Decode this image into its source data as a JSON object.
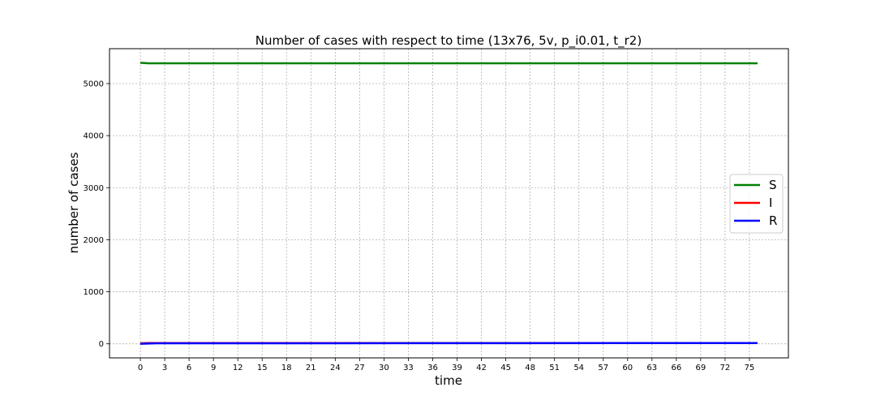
{
  "chart_data": {
    "type": "line",
    "title": "Number of cases with respect to time (13x76, 5v, p_i0.01, t_r2)",
    "xlabel": "time",
    "ylabel": "number of cases",
    "xlim": [
      -3.8,
      79.8
    ],
    "ylim": [
      -270,
      5670
    ],
    "x_ticks": [
      0,
      3,
      6,
      9,
      12,
      15,
      18,
      21,
      24,
      27,
      30,
      33,
      36,
      39,
      42,
      45,
      48,
      51,
      54,
      57,
      60,
      63,
      66,
      69,
      72,
      75
    ],
    "y_ticks": [
      0,
      1000,
      2000,
      3000,
      4000,
      5000
    ],
    "grid": true,
    "legend_position": "center-right",
    "series": [
      {
        "name": "S",
        "color": "#008000",
        "x": [
          0,
          1,
          76
        ],
        "y": [
          5400,
          5390,
          5390
        ]
      },
      {
        "name": "I",
        "color": "#ff0000",
        "x": [
          0,
          1,
          76
        ],
        "y": [
          10,
          15,
          15
        ]
      },
      {
        "name": "R",
        "color": "#0000ff",
        "x": [
          0,
          2,
          76
        ],
        "y": [
          0,
          10,
          15
        ]
      }
    ]
  }
}
